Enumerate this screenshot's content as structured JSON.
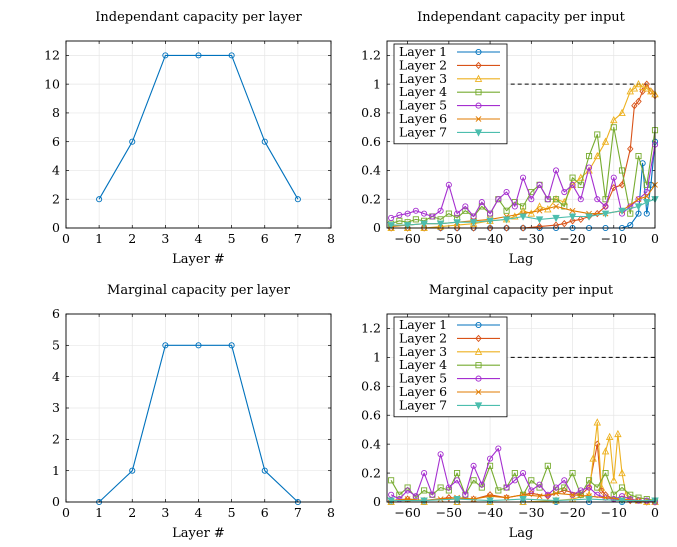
{
  "chart_data": [
    {
      "type": "line",
      "title": "Independant capacity per layer",
      "xlabel": "Layer #",
      "ylabel": "",
      "xlim": [
        0,
        8
      ],
      "ylim": [
        0,
        13
      ],
      "xticks": [
        "0",
        "1",
        "2",
        "3",
        "4",
        "5",
        "6",
        "7",
        "8"
      ],
      "yticks": [
        "0",
        "2",
        "4",
        "6",
        "8",
        "10",
        "12"
      ],
      "grid": true,
      "series": [
        {
          "color": "#0072BD",
          "marker": "circle",
          "x": [
            1,
            2,
            3,
            4,
            5,
            6,
            7
          ],
          "y": [
            2,
            6,
            12,
            12,
            12,
            6,
            2
          ]
        }
      ]
    },
    {
      "type": "line",
      "title": "Independant capacity per input",
      "xlabel": "Lag",
      "ylabel": "",
      "xlim": [
        -65,
        0
      ],
      "ylim": [
        0,
        1.3
      ],
      "xticks": [
        "−60",
        "−50",
        "−40",
        "−30",
        "−20",
        "−10",
        "0"
      ],
      "yticks": [
        "0",
        "0.2",
        "0.4",
        "0.6",
        "0.8",
        "1",
        "1.2"
      ],
      "grid": true,
      "legend_position": "top-left",
      "reference_line": {
        "y": 1,
        "from_x": -35,
        "to_x": 0,
        "style": "dashed",
        "color": "#000000"
      },
      "series": [
        {
          "name": "Layer 1",
          "color": "#0072BD",
          "marker": "circle",
          "x": [
            -64,
            -60,
            -56,
            -52,
            -48,
            -44,
            -40,
            -36,
            -32,
            -28,
            -24,
            -20,
            -16,
            -12,
            -8,
            -6,
            -4,
            -3,
            -2,
            -1,
            0
          ],
          "y": [
            0,
            0,
            0,
            0,
            0,
            0,
            0,
            0,
            0,
            0,
            0,
            0,
            0,
            0,
            0,
            0.02,
            0.1,
            0.45,
            0.1,
            0.3,
            0.6
          ]
        },
        {
          "name": "Layer 2",
          "color": "#D95319",
          "marker": "diamond",
          "x": [
            -64,
            -60,
            -56,
            -52,
            -48,
            -44,
            -40,
            -36,
            -32,
            -28,
            -24,
            -22,
            -20,
            -18,
            -16,
            -14,
            -12,
            -10,
            -8,
            -6,
            -5,
            -4,
            -3,
            -2,
            -1,
            0
          ],
          "y": [
            0,
            0,
            0,
            0,
            0,
            0,
            0,
            0,
            0,
            0.01,
            0.02,
            0.03,
            0.05,
            0.06,
            0.08,
            0.1,
            0.15,
            0.28,
            0.3,
            0.55,
            0.85,
            0.88,
            0.95,
            1.0,
            0.95,
            0.92
          ]
        },
        {
          "name": "Layer 3",
          "color": "#EDB120",
          "marker": "triangle",
          "x": [
            -64,
            -60,
            -56,
            -52,
            -48,
            -44,
            -40,
            -36,
            -34,
            -32,
            -30,
            -28,
            -26,
            -24,
            -22,
            -20,
            -18,
            -16,
            -14,
            -12,
            -10,
            -8,
            -6,
            -5,
            -4,
            -3,
            -2,
            -1,
            0
          ],
          "y": [
            0,
            0,
            0,
            0.01,
            0.02,
            0.03,
            0.05,
            0.06,
            0.08,
            0.12,
            0.1,
            0.15,
            0.13,
            0.2,
            0.18,
            0.3,
            0.35,
            0.4,
            0.5,
            0.6,
            0.75,
            0.8,
            0.95,
            0.97,
            1.0,
            0.98,
            0.97,
            0.95,
            0.93
          ]
        },
        {
          "name": "Layer 4",
          "color": "#77AC30",
          "marker": "square",
          "x": [
            -64,
            -62,
            -60,
            -58,
            -56,
            -54,
            -52,
            -50,
            -48,
            -46,
            -44,
            -42,
            -40,
            -38,
            -36,
            -34,
            -32,
            -30,
            -28,
            -26,
            -24,
            -22,
            -20,
            -18,
            -16,
            -14,
            -12,
            -10,
            -8,
            -6,
            -4,
            -2,
            0
          ],
          "y": [
            0.03,
            0.05,
            0.04,
            0.06,
            0.05,
            0.08,
            0.06,
            0.1,
            0.07,
            0.12,
            0.08,
            0.15,
            0.1,
            0.2,
            0.12,
            0.18,
            0.15,
            0.25,
            0.3,
            0.2,
            0.2,
            0.15,
            0.35,
            0.3,
            0.5,
            0.65,
            0.2,
            0.7,
            0.4,
            0.1,
            0.5,
            0.3,
            0.68
          ]
        },
        {
          "name": "Layer 5",
          "color": "#A52FD0",
          "marker": "circle",
          "x": [
            -64,
            -62,
            -60,
            -58,
            -56,
            -54,
            -52,
            -50,
            -48,
            -46,
            -44,
            -42,
            -40,
            -38,
            -36,
            -34,
            -32,
            -30,
            -28,
            -26,
            -24,
            -22,
            -20,
            -18,
            -16,
            -14,
            -12,
            -10,
            -8,
            -6,
            -4,
            -2,
            0
          ],
          "y": [
            0.07,
            0.09,
            0.1,
            0.12,
            0.1,
            0.08,
            0.12,
            0.3,
            0.1,
            0.15,
            0.08,
            0.18,
            0.1,
            0.2,
            0.25,
            0.15,
            0.35,
            0.2,
            0.3,
            0.2,
            0.4,
            0.25,
            0.3,
            0.2,
            0.42,
            0.2,
            0.15,
            0.35,
            0.1,
            0.15,
            0.2,
            0.25,
            0.58
          ]
        },
        {
          "name": "Layer 6",
          "color": "#E07B00",
          "marker": "cross",
          "x": [
            -64,
            -60,
            -56,
            -52,
            -48,
            -44,
            -40,
            -36,
            -32,
            -28,
            -24,
            -20,
            -16,
            -12,
            -8,
            -4,
            -2,
            0
          ],
          "y": [
            0.01,
            0.02,
            0.03,
            0.03,
            0.04,
            0.05,
            0.06,
            0.08,
            0.1,
            0.12,
            0.15,
            0.12,
            0.1,
            0.1,
            0.12,
            0.2,
            0.22,
            0.3
          ]
        },
        {
          "name": "Layer 7",
          "color": "#4DBEAE",
          "marker": "triangle-down",
          "x": [
            -64,
            -60,
            -56,
            -52,
            -48,
            -44,
            -40,
            -36,
            -32,
            -28,
            -24,
            -20,
            -16,
            -12,
            -8,
            -4,
            -2,
            0
          ],
          "y": [
            0.02,
            0.02,
            0.03,
            0.03,
            0.04,
            0.04,
            0.05,
            0.06,
            0.08,
            0.06,
            0.07,
            0.08,
            0.08,
            0.1,
            0.12,
            0.15,
            0.18,
            0.2
          ]
        }
      ]
    },
    {
      "type": "line",
      "title": "Marginal capacity per layer",
      "xlabel": "Layer #",
      "ylabel": "",
      "xlim": [
        0,
        8
      ],
      "ylim": [
        0,
        6
      ],
      "xticks": [
        "0",
        "1",
        "2",
        "3",
        "4",
        "5",
        "6",
        "7",
        "8"
      ],
      "yticks": [
        "0",
        "1",
        "2",
        "3",
        "4",
        "5",
        "6"
      ],
      "grid": true,
      "series": [
        {
          "color": "#0072BD",
          "marker": "circle",
          "x": [
            1,
            2,
            3,
            4,
            5,
            6,
            7
          ],
          "y": [
            0,
            1,
            5,
            5,
            5,
            1,
            0
          ]
        }
      ]
    },
    {
      "type": "line",
      "title": "Marginal capacity per input",
      "xlabel": "Lag",
      "ylabel": "",
      "xlim": [
        -65,
        0
      ],
      "ylim": [
        0,
        1.3
      ],
      "xticks": [
        "−60",
        "−50",
        "−40",
        "−30",
        "−20",
        "−10",
        "0"
      ],
      "yticks": [
        "0",
        "0.2",
        "0.4",
        "0.6",
        "0.8",
        "1",
        "1.2"
      ],
      "grid": true,
      "legend_position": "top-left",
      "reference_line": {
        "y": 1,
        "from_x": -35,
        "to_x": 0,
        "style": "dashed",
        "color": "#000000"
      },
      "series": [
        {
          "name": "Layer 1",
          "color": "#0072BD",
          "marker": "circle",
          "x": [
            -64,
            -56,
            -48,
            -40,
            -32,
            -24,
            -16,
            -8,
            0
          ],
          "y": [
            0,
            0,
            0,
            0,
            0,
            0,
            0,
            0,
            0
          ]
        },
        {
          "name": "Layer 2",
          "color": "#D95319",
          "marker": "diamond",
          "x": [
            -64,
            -60,
            -56,
            -50,
            -44,
            -40,
            -36,
            -30,
            -26,
            -22,
            -18,
            -16,
            -14,
            -13,
            -12,
            -10,
            -6,
            -2,
            0
          ],
          "y": [
            0.01,
            0.02,
            0.01,
            0.03,
            0.02,
            0.05,
            0.03,
            0.06,
            0.04,
            0.08,
            0.05,
            0.1,
            0.4,
            0.08,
            0.05,
            0.02,
            0.01,
            0.0,
            0.0
          ]
        },
        {
          "name": "Layer 3",
          "color": "#EDB120",
          "marker": "triangle",
          "x": [
            -64,
            -56,
            -48,
            -40,
            -32,
            -24,
            -20,
            -16,
            -15,
            -14,
            -13,
            -12,
            -11,
            -10,
            -9,
            -8,
            -7,
            -6,
            -4,
            -2,
            0
          ],
          "y": [
            0,
            0,
            0,
            0,
            0,
            0.01,
            0.02,
            0.05,
            0.3,
            0.55,
            0.1,
            0.35,
            0.45,
            0.15,
            0.47,
            0.2,
            0.05,
            0.02,
            0.01,
            0.0,
            0.0
          ]
        },
        {
          "name": "Layer 4",
          "color": "#77AC30",
          "marker": "square",
          "x": [
            -64,
            -62,
            -60,
            -58,
            -56,
            -54,
            -52,
            -50,
            -48,
            -46,
            -44,
            -42,
            -40,
            -38,
            -36,
            -34,
            -32,
            -30,
            -28,
            -26,
            -24,
            -22,
            -20,
            -18,
            -16,
            -14,
            -12,
            -10,
            -8,
            -6,
            -4,
            -2,
            0
          ],
          "y": [
            0.15,
            0.05,
            0.1,
            0.03,
            0.08,
            0.05,
            0.1,
            0.08,
            0.2,
            0.05,
            0.15,
            0.1,
            0.25,
            0.08,
            0.1,
            0.2,
            0.05,
            0.15,
            0.1,
            0.25,
            0.08,
            0.1,
            0.2,
            0.05,
            0.15,
            0.1,
            0.2,
            0.05,
            0.1,
            0.05,
            0.03,
            0.02,
            0.01
          ]
        },
        {
          "name": "Layer 5",
          "color": "#A52FD0",
          "marker": "circle",
          "x": [
            -64,
            -62,
            -60,
            -58,
            -56,
            -54,
            -52,
            -50,
            -48,
            -46,
            -44,
            -42,
            -40,
            -38,
            -36,
            -34,
            -32,
            -30,
            -28,
            -26,
            -24,
            -22,
            -20,
            -18,
            -16,
            -14,
            -12,
            -10,
            -8,
            -6,
            -4,
            -2,
            0
          ],
          "y": [
            0.05,
            0.02,
            0.08,
            0.04,
            0.2,
            0.05,
            0.33,
            0.1,
            0.15,
            0.05,
            0.25,
            0.12,
            0.3,
            0.37,
            0.1,
            0.15,
            0.2,
            0.08,
            0.12,
            0.05,
            0.1,
            0.15,
            0.05,
            0.08,
            0.1,
            0.05,
            0.03,
            0.02,
            0.04,
            0.02,
            0.01,
            0.01,
            0.0
          ]
        },
        {
          "name": "Layer 6",
          "color": "#E07B00",
          "marker": "cross",
          "x": [
            -64,
            -60,
            -56,
            -52,
            -48,
            -44,
            -40,
            -36,
            -32,
            -28,
            -24,
            -20,
            -16,
            -12,
            -8,
            -4,
            0
          ],
          "y": [
            0.01,
            0.02,
            0.01,
            0.02,
            0.03,
            0.02,
            0.04,
            0.03,
            0.05,
            0.04,
            0.06,
            0.05,
            0.04,
            0.03,
            0.02,
            0.01,
            0.01
          ]
        },
        {
          "name": "Layer 7",
          "color": "#4DBEAE",
          "marker": "triangle-down",
          "x": [
            -64,
            -56,
            -48,
            -40,
            -32,
            -24,
            -16,
            -8,
            0
          ],
          "y": [
            0.01,
            0.01,
            0.02,
            0.01,
            0.02,
            0.01,
            0.02,
            0.01,
            0.01
          ]
        }
      ]
    }
  ]
}
